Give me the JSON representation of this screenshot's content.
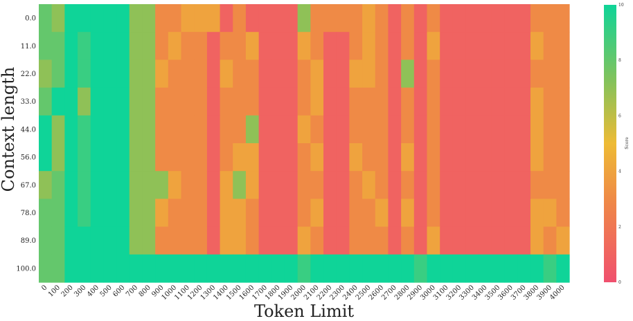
{
  "chart_data": {
    "type": "heatmap",
    "xlabel": "Token Limit",
    "ylabel": "Context length",
    "x": [
      "0",
      "100",
      "200",
      "300",
      "400",
      "500",
      "600",
      "700",
      "800",
      "900",
      "1000",
      "1100",
      "1200",
      "1300",
      "1400",
      "1500",
      "1600",
      "1700",
      "1800",
      "1900",
      "2000",
      "2100",
      "2200",
      "2300",
      "2400",
      "2500",
      "2600",
      "2700",
      "2800",
      "2900",
      "3000",
      "3100",
      "3200",
      "3300",
      "3400",
      "3500",
      "3600",
      "3700",
      "3800",
      "3900",
      "4000"
    ],
    "y": [
      "0.0",
      "11.0",
      "22.0",
      "33.0",
      "44.0",
      "56.0",
      "67.0",
      "78.0",
      "89.0",
      "100.0"
    ],
    "values": [
      [
        8,
        7,
        10,
        10,
        10,
        10,
        10,
        7,
        7,
        3,
        3,
        4,
        4,
        4,
        1,
        3,
        1,
        1,
        1,
        1,
        7,
        3,
        3,
        3,
        3,
        4,
        3,
        1,
        3,
        1,
        3,
        1,
        1,
        1,
        1,
        1,
        1,
        1,
        3,
        3,
        3
      ],
      [
        8,
        8,
        10,
        9,
        10,
        10,
        10,
        7,
        7,
        3,
        4,
        3,
        3,
        1,
        3,
        3,
        4,
        1,
        1,
        1,
        4,
        3,
        1,
        1,
        3,
        4,
        3,
        1,
        3,
        1,
        4,
        1,
        1,
        1,
        1,
        1,
        1,
        1,
        4,
        3,
        3
      ],
      [
        7,
        8,
        10,
        9,
        10,
        10,
        10,
        7,
        7,
        4,
        3,
        3,
        3,
        1,
        4,
        3,
        3,
        1,
        1,
        1,
        3,
        4,
        1,
        1,
        4,
        4,
        3,
        1,
        7,
        1,
        3,
        1,
        1,
        1,
        1,
        1,
        1,
        1,
        3,
        3,
        3
      ],
      [
        8,
        10,
        10,
        7,
        10,
        10,
        10,
        7,
        7,
        3,
        3,
        3,
        3,
        1,
        3,
        3,
        3,
        1,
        1,
        1,
        3,
        4,
        1,
        1,
        3,
        3,
        3,
        1,
        3,
        1,
        3,
        1,
        1,
        1,
        1,
        1,
        1,
        1,
        4,
        3,
        3
      ],
      [
        10,
        7,
        10,
        9,
        10,
        10,
        10,
        7,
        7,
        3,
        3,
        3,
        3,
        1,
        3,
        3,
        7,
        1,
        1,
        1,
        4,
        3,
        1,
        1,
        3,
        3,
        3,
        1,
        3,
        1,
        3,
        1,
        1,
        1,
        1,
        1,
        1,
        1,
        4,
        3,
        3
      ],
      [
        10,
        7,
        10,
        9,
        10,
        10,
        10,
        7,
        7,
        3,
        3,
        3,
        3,
        1,
        3,
        4,
        4,
        1,
        1,
        1,
        3,
        4,
        1,
        1,
        4,
        3,
        3,
        1,
        4,
        1,
        3,
        1,
        1,
        1,
        1,
        1,
        1,
        1,
        4,
        3,
        3
      ],
      [
        7,
        8,
        10,
        9,
        10,
        10,
        10,
        7,
        7,
        7,
        4,
        3,
        3,
        1,
        4,
        7,
        4,
        1,
        1,
        1,
        3,
        3,
        1,
        1,
        3,
        4,
        3,
        1,
        3,
        1,
        3,
        1,
        1,
        1,
        1,
        1,
        1,
        1,
        3,
        3,
        3
      ],
      [
        8,
        8,
        10,
        9,
        10,
        10,
        10,
        7,
        7,
        4,
        3,
        3,
        3,
        1,
        4,
        4,
        3,
        1,
        1,
        1,
        3,
        4,
        1,
        1,
        3,
        3,
        4,
        1,
        4,
        1,
        3,
        1,
        1,
        1,
        1,
        1,
        1,
        1,
        4,
        4,
        3
      ],
      [
        8,
        8,
        10,
        10,
        10,
        10,
        10,
        7,
        7,
        3,
        3,
        3,
        3,
        1,
        4,
        4,
        3,
        1,
        1,
        1,
        4,
        3,
        1,
        1,
        3,
        3,
        3,
        1,
        3,
        1,
        4,
        1,
        1,
        1,
        1,
        1,
        1,
        1,
        4,
        3,
        4
      ],
      [
        8,
        8,
        10,
        10,
        10,
        10,
        10,
        10,
        10,
        10,
        10,
        10,
        10,
        10,
        10,
        10,
        10,
        10,
        10,
        10,
        9,
        10,
        10,
        10,
        10,
        10,
        10,
        10,
        10,
        9,
        10,
        10,
        10,
        10,
        10,
        10,
        10,
        10,
        10,
        9,
        10
      ]
    ],
    "colorbar": {
      "label": "Score",
      "ticks": [
        "0",
        "2",
        "4",
        "6",
        "8",
        "10"
      ],
      "range": [
        0,
        10
      ]
    },
    "colors": {
      "low": "#f0506e",
      "mid_low": "#ef8a46",
      "mid": "#eebb35",
      "mid_high": "#86c25a",
      "high": "#0fd498"
    }
  }
}
